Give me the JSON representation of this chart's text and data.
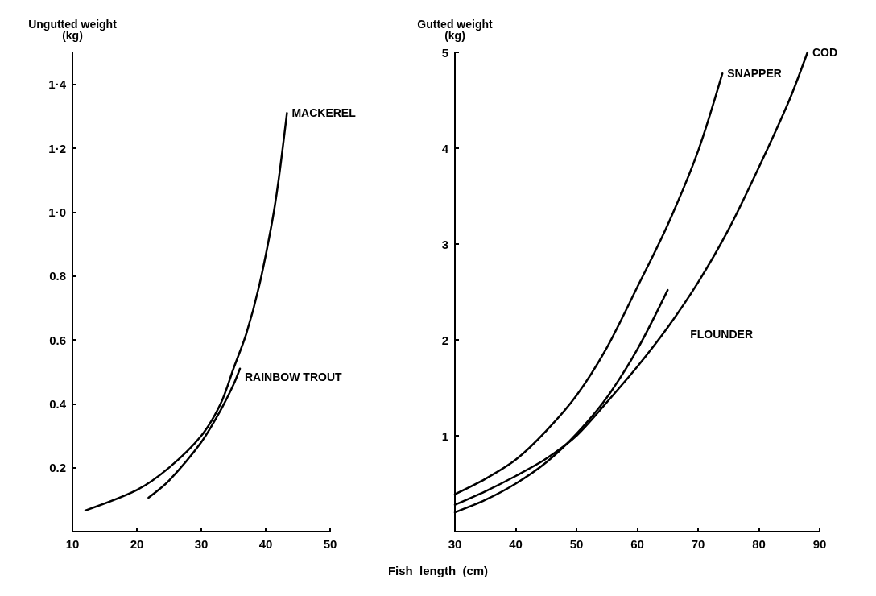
{
  "chart_data": [
    {
      "type": "line",
      "ylabel": "Ungutted weight\n(kg)",
      "xlabel": "Fish  length  (cm)",
      "xlim": [
        10,
        50
      ],
      "xticks": [
        10,
        20,
        30,
        40,
        50
      ],
      "ylim": [
        0,
        1.5
      ],
      "yticks": [
        {
          "value": 0.2,
          "label": "0.2"
        },
        {
          "value": 0.4,
          "label": "0.4"
        },
        {
          "value": 0.6,
          "label": "0.6"
        },
        {
          "value": 0.8,
          "label": "0.8"
        },
        {
          "value": 1.0,
          "label": "1·0"
        },
        {
          "value": 1.2,
          "label": "1·2"
        },
        {
          "value": 1.4,
          "label": "1·4"
        }
      ],
      "grid": false,
      "legend": false,
      "marker": "none",
      "line_style": "solid",
      "series": [
        {
          "name": "MACKEREL",
          "color": "#000000",
          "x": [
            12,
            20,
            25,
            30,
            33,
            35,
            37,
            39,
            41,
            42,
            43.3
          ],
          "values": [
            0.066,
            0.13,
            0.2,
            0.3,
            0.4,
            0.51,
            0.62,
            0.77,
            0.97,
            1.1,
            1.31
          ]
        },
        {
          "name": "RAINBOW TROUT",
          "color": "#000000",
          "x": [
            21.8,
            25,
            30,
            33,
            35,
            36
          ],
          "values": [
            0.106,
            0.16,
            0.28,
            0.38,
            0.46,
            0.51
          ]
        }
      ]
    },
    {
      "type": "line",
      "ylabel": "Gutted weight\n(kg)",
      "xlim": [
        30,
        90
      ],
      "xticks": [
        30,
        40,
        50,
        60,
        70,
        80,
        90
      ],
      "ylim": [
        0,
        5
      ],
      "yticks": [
        1,
        2,
        3,
        4,
        5
      ],
      "grid": false,
      "legend": false,
      "marker": "none",
      "line_style": "solid",
      "series": [
        {
          "name": "SNAPPER",
          "color": "#000000",
          "x": [
            30,
            35,
            40,
            45,
            50,
            55,
            60,
            65,
            70,
            74
          ],
          "values": [
            0.39,
            0.55,
            0.75,
            1.05,
            1.42,
            1.92,
            2.55,
            3.2,
            3.97,
            4.78
          ]
        },
        {
          "name": "FLOUNDER",
          "color": "#000000",
          "x": [
            30,
            35,
            40,
            45,
            50,
            55,
            60,
            65
          ],
          "values": [
            0.2,
            0.33,
            0.5,
            0.72,
            1.02,
            1.4,
            1.9,
            2.52
          ]
        },
        {
          "name": "COD",
          "color": "#000000",
          "x": [
            30,
            35,
            40,
            45,
            50,
            55,
            60,
            65,
            70,
            75,
            80,
            85,
            88
          ],
          "values": [
            0.28,
            0.42,
            0.58,
            0.76,
            1.0,
            1.35,
            1.72,
            2.13,
            2.6,
            3.15,
            3.8,
            4.5,
            5.0
          ]
        }
      ]
    }
  ]
}
